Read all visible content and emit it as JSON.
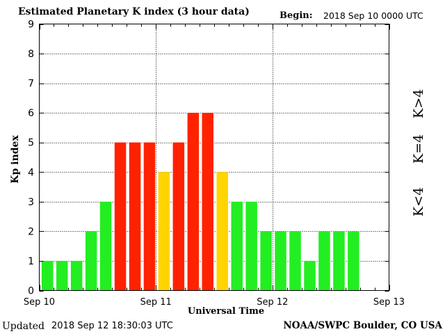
{
  "header": {
    "title": "Estimated Planetary K index (3 hour data)",
    "begin_label": "Begin:",
    "begin_value": "2018 Sep 10 0000 UTC"
  },
  "footer": {
    "updated_prefix": "Updated",
    "updated_time": "2018 Sep 12 18:30:03 UTC",
    "credit": "NOAA/SWPC Boulder, CO USA"
  },
  "legend": {
    "red": "K>4",
    "yellow": "K=4",
    "green": "K<4"
  },
  "colors": {
    "green": "#22ee22",
    "yellow": "#ffd400",
    "red": "#ff2200",
    "grid": "#000000"
  },
  "chart_data": {
    "type": "bar",
    "title": "Estimated Planetary K index (3 hour data)",
    "xlabel": "Universal Time",
    "ylabel": "Kp index",
    "ylim": [
      0,
      9
    ],
    "yticks": [
      "0",
      "1",
      "2",
      "3",
      "4",
      "5",
      "6",
      "7",
      "8",
      "9"
    ],
    "xticks": [
      "Sep 10",
      "Sep 11",
      "Sep 12",
      "Sep 13"
    ],
    "interval_hours": 3,
    "values": [
      1,
      1,
      1,
      2,
      3,
      5,
      5,
      5,
      4,
      5,
      6,
      6,
      4,
      3,
      3,
      2,
      2,
      2,
      1,
      2,
      2,
      2
    ],
    "grid": "dotted",
    "legend_position": "right, vertical"
  }
}
